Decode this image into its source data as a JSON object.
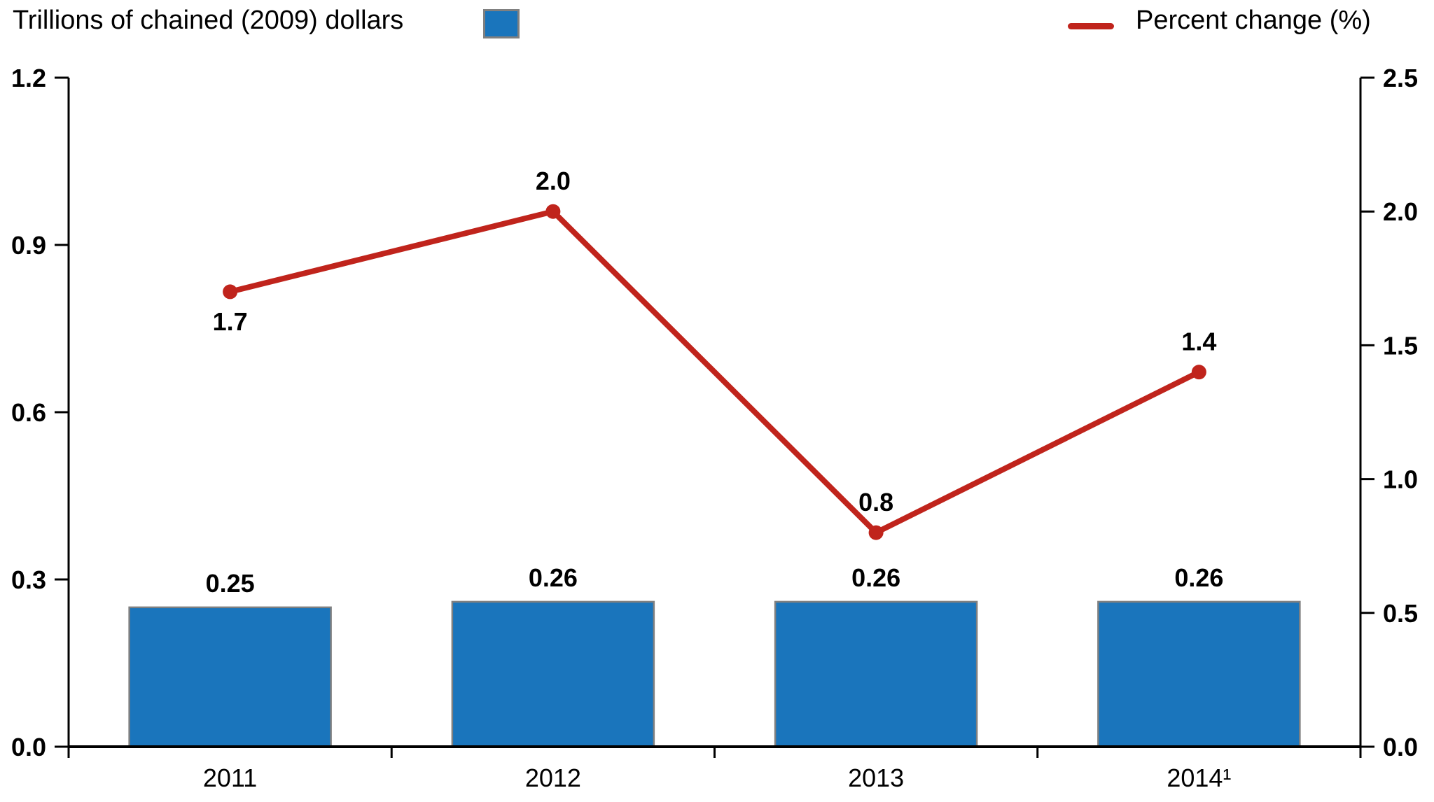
{
  "legend": {
    "bar_series_label": "Trillions of chained (2009) dollars",
    "line_series_label": "Percent change (%)"
  },
  "colors": {
    "bar_fill": "#1a75bc",
    "bar_border": "#808080",
    "line": "#c0241c",
    "axis": "#000000"
  },
  "chart_data": {
    "type": "bar",
    "subtype": "combo-bar-line-dual-axis",
    "categories": [
      "2011",
      "2012",
      "2013",
      "2014¹"
    ],
    "series": [
      {
        "name": "Trillions of chained (2009) dollars",
        "type": "bar",
        "axis": "left",
        "values": [
          0.25,
          0.26,
          0.26,
          0.26
        ],
        "labels": [
          "0.25",
          "0.26",
          "0.26",
          "0.26"
        ]
      },
      {
        "name": "Percent change (%)",
        "type": "line",
        "axis": "right",
        "values": [
          1.7,
          2.0,
          0.8,
          1.4
        ],
        "labels": [
          "1.7",
          "2.0",
          "0.8",
          "1.4"
        ],
        "label_positions": [
          "below",
          "above",
          "above",
          "above"
        ]
      }
    ],
    "left_axis": {
      "min": 0.0,
      "max": 1.2,
      "tick_step": 0.3,
      "tick_labels": [
        "0.0",
        "0.3",
        "0.6",
        "0.9",
        "1.2"
      ]
    },
    "right_axis": {
      "min": 0.0,
      "max": 2.5,
      "tick_step": 0.5,
      "tick_labels": [
        "0.0",
        "0.5",
        "1.0",
        "1.5",
        "2.0",
        "2.5"
      ]
    },
    "grid": false,
    "legend_position": "top"
  }
}
